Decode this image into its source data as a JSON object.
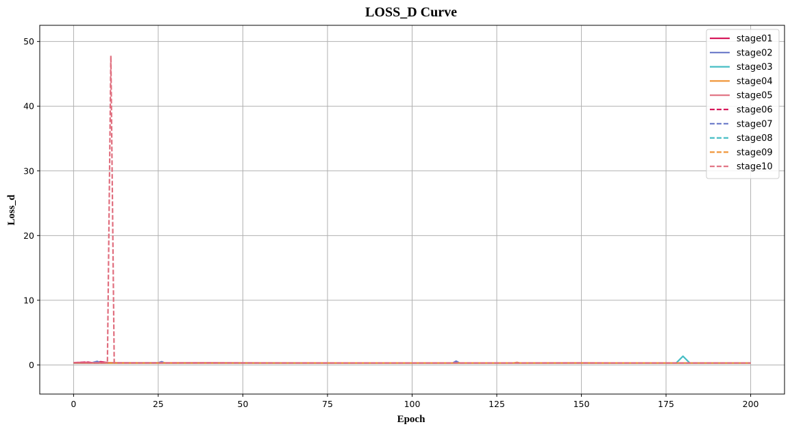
{
  "chart_data": {
    "type": "line",
    "title": "LOSS_D Curve",
    "xlabel": "Epoch",
    "ylabel": "Loss_d",
    "xlim": [
      -10,
      210
    ],
    "ylim": [
      -4.5,
      52.5
    ],
    "x_ticks": [
      0,
      25,
      50,
      75,
      100,
      125,
      150,
      175,
      200
    ],
    "y_ticks": [
      0,
      10,
      20,
      30,
      40,
      50
    ],
    "grid": true,
    "legend_position": "top-right",
    "series": [
      {
        "name": "stage01",
        "color": "#d6195b",
        "style": "solid",
        "points": [
          [
            0,
            0.35
          ],
          [
            2,
            0.38
          ],
          [
            4,
            0.4
          ],
          [
            6,
            0.3
          ],
          [
            8,
            0.5
          ],
          [
            10,
            0.35
          ],
          [
            12,
            0.33
          ],
          [
            20,
            0.3
          ],
          [
            40,
            0.32
          ],
          [
            60,
            0.3
          ],
          [
            80,
            0.28
          ],
          [
            100,
            0.3
          ],
          [
            120,
            0.28
          ],
          [
            140,
            0.29
          ],
          [
            160,
            0.3
          ],
          [
            180,
            0.28
          ],
          [
            200,
            0.29
          ]
        ]
      },
      {
        "name": "stage02",
        "color": "#6878c8",
        "style": "solid",
        "points": [
          [
            0,
            0.3
          ],
          [
            5,
            0.28
          ],
          [
            7,
            0.55
          ],
          [
            8,
            0.3
          ],
          [
            25,
            0.32
          ],
          [
            26,
            0.5
          ],
          [
            27,
            0.3
          ],
          [
            40,
            0.3
          ],
          [
            60,
            0.29
          ],
          [
            100,
            0.3
          ],
          [
            112,
            0.3
          ],
          [
            113,
            0.6
          ],
          [
            114,
            0.3
          ],
          [
            140,
            0.29
          ],
          [
            170,
            0.3
          ],
          [
            200,
            0.3
          ]
        ]
      },
      {
        "name": "stage03",
        "color": "#45bdc4",
        "style": "solid",
        "points": [
          [
            0,
            0.3
          ],
          [
            50,
            0.3
          ],
          [
            100,
            0.29
          ],
          [
            150,
            0.3
          ],
          [
            178,
            0.3
          ],
          [
            180,
            1.35
          ],
          [
            182,
            0.3
          ],
          [
            200,
            0.3
          ]
        ]
      },
      {
        "name": "stage04",
        "color": "#f0963a",
        "style": "solid",
        "points": [
          [
            0,
            0.28
          ],
          [
            50,
            0.29
          ],
          [
            100,
            0.28
          ],
          [
            130,
            0.3
          ],
          [
            131,
            0.4
          ],
          [
            132,
            0.28
          ],
          [
            200,
            0.28
          ]
        ]
      },
      {
        "name": "stage05",
        "color": "#e06e7e",
        "style": "solid",
        "points": [
          [
            0,
            0.33
          ],
          [
            50,
            0.32
          ],
          [
            100,
            0.31
          ],
          [
            150,
            0.32
          ],
          [
            200,
            0.31
          ]
        ]
      },
      {
        "name": "stage06",
        "color": "#d6195b",
        "style": "dashed",
        "points": [
          [
            0,
            0.32
          ],
          [
            4,
            0.45
          ],
          [
            6,
            0.3
          ],
          [
            50,
            0.3
          ],
          [
            100,
            0.3
          ],
          [
            150,
            0.3
          ],
          [
            200,
            0.3
          ]
        ]
      },
      {
        "name": "stage07",
        "color": "#6878c8",
        "style": "dashed",
        "points": [
          [
            0,
            0.3
          ],
          [
            50,
            0.3
          ],
          [
            100,
            0.29
          ],
          [
            150,
            0.3
          ],
          [
            200,
            0.3
          ]
        ]
      },
      {
        "name": "stage08",
        "color": "#45bdc4",
        "style": "dashed",
        "points": [
          [
            0,
            0.29
          ],
          [
            50,
            0.3
          ],
          [
            100,
            0.3
          ],
          [
            150,
            0.29
          ],
          [
            200,
            0.3
          ]
        ]
      },
      {
        "name": "stage09",
        "color": "#f0963a",
        "style": "dashed",
        "points": [
          [
            0,
            0.3
          ],
          [
            50,
            0.29
          ],
          [
            100,
            0.3
          ],
          [
            150,
            0.3
          ],
          [
            200,
            0.29
          ]
        ]
      },
      {
        "name": "stage10",
        "color": "#e06e7e",
        "style": "dashed",
        "points": [
          [
            0,
            0.32
          ],
          [
            9,
            0.3
          ],
          [
            10,
            0.5
          ],
          [
            11,
            47.8
          ],
          [
            12,
            0.4
          ],
          [
            13,
            0.3
          ],
          [
            50,
            0.3
          ],
          [
            100,
            0.3
          ],
          [
            150,
            0.3
          ],
          [
            200,
            0.3
          ]
        ]
      }
    ]
  }
}
